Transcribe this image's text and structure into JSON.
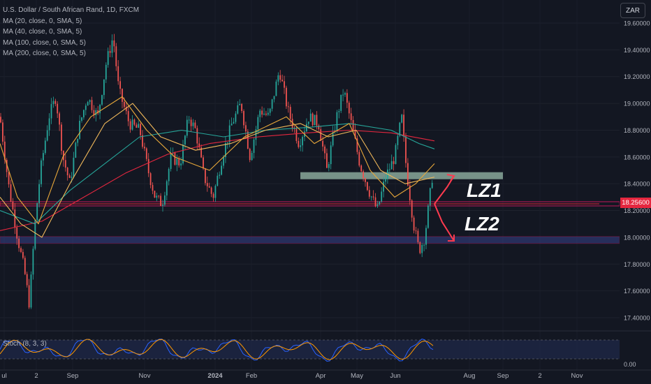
{
  "legend": {
    "symbol": "U.S. Dollar / South African Rand, 1D, FXCM",
    "indicators": [
      "MA (20, close, 0, SMA, 5)",
      "MA (40, close, 0, SMA, 5)",
      "MA (100, close, 0, SMA, 5)",
      "MA (200, close, 0, SMA, 5)"
    ]
  },
  "currency": "ZAR",
  "last_price": "18.25600",
  "stochastic": {
    "label": "Stoch (8, 3, 3)",
    "axis_label": "0.00"
  },
  "colors": {
    "background": "#131722",
    "up_candle": "#26a69a",
    "down_candle": "#ef5350",
    "ma20": "#e8a83a",
    "ma40": "#f0b85a",
    "ma100": "#26a69a",
    "ma200": "#e5273f",
    "zone_green": "#8aa89a",
    "zone_purple": "#3f4aa0",
    "arrow": "#ff3b4f",
    "stoch_k": "#2962ff",
    "stoch_d": "#ff9800"
  },
  "chart_data": {
    "type": "candlestick",
    "y_axis": {
      "min": 17.3,
      "max": 19.7,
      "ticks": [
        "19.60000",
        "19.40000",
        "19.20000",
        "19.00000",
        "18.80000",
        "18.60000",
        "18.40000",
        "18.20000",
        "18.00000",
        "17.80000",
        "17.60000",
        "17.40000"
      ]
    },
    "x_axis": {
      "ticks": [
        "ul",
        "2",
        "Sep",
        "Nov",
        "2024",
        "Feb",
        "Apr",
        "May",
        "Jun",
        "Aug",
        "Sep",
        "2",
        "Nov"
      ]
    },
    "horizontal_levels": [
      {
        "value": 18.46,
        "style": "green-zone"
      },
      {
        "value": 18.25,
        "style": "red-line"
      },
      {
        "value": 17.98,
        "style": "purple-zone"
      }
    ],
    "annotations": [
      "LZ1",
      "LZ2"
    ],
    "ma_keypoints": {
      "ma20": [
        [
          0,
          18.7
        ],
        [
          25,
          18.3
        ],
        [
          55,
          18.1
        ],
        [
          90,
          18.6
        ],
        [
          130,
          18.9
        ],
        [
          175,
          19.05
        ],
        [
          210,
          18.8
        ],
        [
          250,
          18.6
        ],
        [
          300,
          18.5
        ],
        [
          350,
          18.75
        ],
        [
          410,
          18.9
        ],
        [
          450,
          18.7
        ],
        [
          500,
          18.85
        ],
        [
          530,
          18.5
        ],
        [
          565,
          18.3
        ],
        [
          595,
          18.4
        ],
        [
          622,
          18.55
        ]
      ],
      "ma40": [
        [
          0,
          18.3
        ],
        [
          30,
          18.1
        ],
        [
          60,
          18.0
        ],
        [
          100,
          18.4
        ],
        [
          150,
          18.85
        ],
        [
          190,
          19.0
        ],
        [
          230,
          18.75
        ],
        [
          280,
          18.65
        ],
        [
          330,
          18.7
        ],
        [
          380,
          18.8
        ],
        [
          430,
          18.85
        ],
        [
          470,
          18.75
        ],
        [
          510,
          18.8
        ],
        [
          545,
          18.5
        ],
        [
          580,
          18.4
        ],
        [
          622,
          18.45
        ]
      ],
      "ma100": [
        [
          0,
          18.2
        ],
        [
          50,
          18.1
        ],
        [
          100,
          18.35
        ],
        [
          150,
          18.55
        ],
        [
          200,
          18.75
        ],
        [
          260,
          18.8
        ],
        [
          320,
          18.75
        ],
        [
          380,
          18.8
        ],
        [
          440,
          18.82
        ],
        [
          500,
          18.85
        ],
        [
          560,
          18.8
        ],
        [
          600,
          18.7
        ],
        [
          622,
          18.66
        ]
      ],
      "ma200": [
        [
          0,
          18.05
        ],
        [
          60,
          18.12
        ],
        [
          120,
          18.3
        ],
        [
          180,
          18.48
        ],
        [
          240,
          18.62
        ],
        [
          300,
          18.7
        ],
        [
          370,
          18.75
        ],
        [
          440,
          18.78
        ],
        [
          500,
          18.8
        ],
        [
          560,
          18.78
        ],
        [
          622,
          18.72
        ]
      ]
    }
  }
}
